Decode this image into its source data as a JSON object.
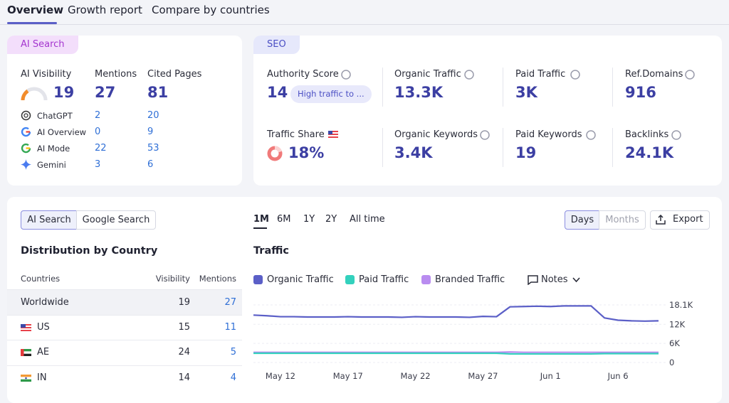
{
  "tabs": [
    "Overview",
    "Growth report",
    "Compare by countries"
  ],
  "ai_search": {
    "badge": "AI Search",
    "metrics": [
      {
        "label": "AI Visibility",
        "value": 19
      },
      {
        "label": "Mentions",
        "value": 27
      },
      {
        "label": "Cited Pages",
        "value": 81
      }
    ],
    "sources": [
      {
        "name": "ChatGPT",
        "mentions": 2,
        "cited_pages": 20
      },
      {
        "name": "AI Overview",
        "mentions": 0,
        "cited_pages": 9
      },
      {
        "name": "AI Mode",
        "mentions": 22,
        "cited_pages": 53
      },
      {
        "name": "Gemini",
        "mentions": 3,
        "cited_pages": 6
      }
    ]
  },
  "seo": {
    "badge": "SEO",
    "metrics": [
      {
        "label": "Authority Score",
        "value": 14,
        "note": "High traffic to ..."
      },
      {
        "label": "Organic Traffic",
        "value": "13.3K"
      },
      {
        "label": "Paid Traffic",
        "value": "3K"
      },
      {
        "label": "Ref.Domains",
        "value": 916
      },
      {
        "label": "Traffic Share",
        "value": "18%"
      },
      {
        "label": "Organic Keywords",
        "value": "3.4K"
      },
      {
        "label": "Paid Keywords",
        "value": 19
      },
      {
        "label": "Backlinks",
        "value": "24.1K"
      }
    ]
  },
  "distribution": {
    "toggle": [
      "AI Search",
      "Google Search"
    ],
    "title": "Distribution by Country",
    "columns": [
      "Countries",
      "Visibility",
      "Mentions"
    ],
    "rows": [
      [
        "Worldwide",
        19,
        27
      ],
      [
        "US",
        15,
        11
      ],
      [
        "AE",
        24,
        5
      ],
      [
        "IN",
        14,
        4
      ]
    ]
  },
  "traffic": {
    "periods": [
      "1M",
      "6M",
      "1Y",
      "2Y",
      "All time"
    ],
    "granularity": [
      "Days",
      "Months"
    ],
    "export": "Export",
    "notes": "Notes"
  },
  "chart_data": {
    "type": "line",
    "title": "Traffic",
    "categories": [
      null,
      null,
      "May 12",
      null,
      null,
      null,
      null,
      "May 17",
      null,
      null,
      null,
      null,
      "May 22",
      null,
      null,
      null,
      null,
      "May 27",
      null,
      null,
      null,
      null,
      "Jun 1",
      null,
      null,
      null,
      null,
      "Jun 6",
      null,
      null,
      null
    ],
    "series": [
      {
        "name": "Organic Traffic",
        "color": "#5b5fc7",
        "values": [
          14900,
          14700,
          14400,
          14400,
          14300,
          14300,
          14300,
          14400,
          14300,
          14300,
          14300,
          14200,
          14400,
          14300,
          14300,
          14300,
          14200,
          14500,
          14400,
          17500,
          17600,
          17700,
          17600,
          17800,
          17800,
          17800,
          14000,
          13300,
          13100,
          13000,
          13100
        ]
      },
      {
        "name": "Paid Traffic",
        "color": "#33d1bd",
        "values": [
          2900,
          2900,
          2900,
          2900,
          2900,
          2900,
          2900,
          2900,
          2900,
          2900,
          2900,
          2900,
          2900,
          2900,
          2900,
          2900,
          2900,
          2900,
          2900,
          2700,
          2700,
          2700,
          2700,
          2700,
          2700,
          2700,
          2800,
          2800,
          2800,
          2800,
          2800
        ]
      },
      {
        "name": "Branded Traffic",
        "color": "#b98cf0",
        "values": [
          3200,
          3200,
          3200,
          3200,
          3200,
          3200,
          3200,
          3200,
          3200,
          3200,
          3200,
          3200,
          3200,
          3200,
          3200,
          3200,
          3200,
          3200,
          3200,
          3300,
          3200,
          3200,
          3200,
          3200,
          3200,
          3200,
          3200,
          3200,
          3200,
          3200,
          3200
        ]
      }
    ],
    "ylim": [
      0,
      18100
    ],
    "yticks": [
      0,
      {
        "value": 6000,
        "label": "6K"
      },
      {
        "value": 12000,
        "label": "12K"
      },
      {
        "value": 18100,
        "label": "18.1K"
      }
    ],
    "grid": true
  }
}
